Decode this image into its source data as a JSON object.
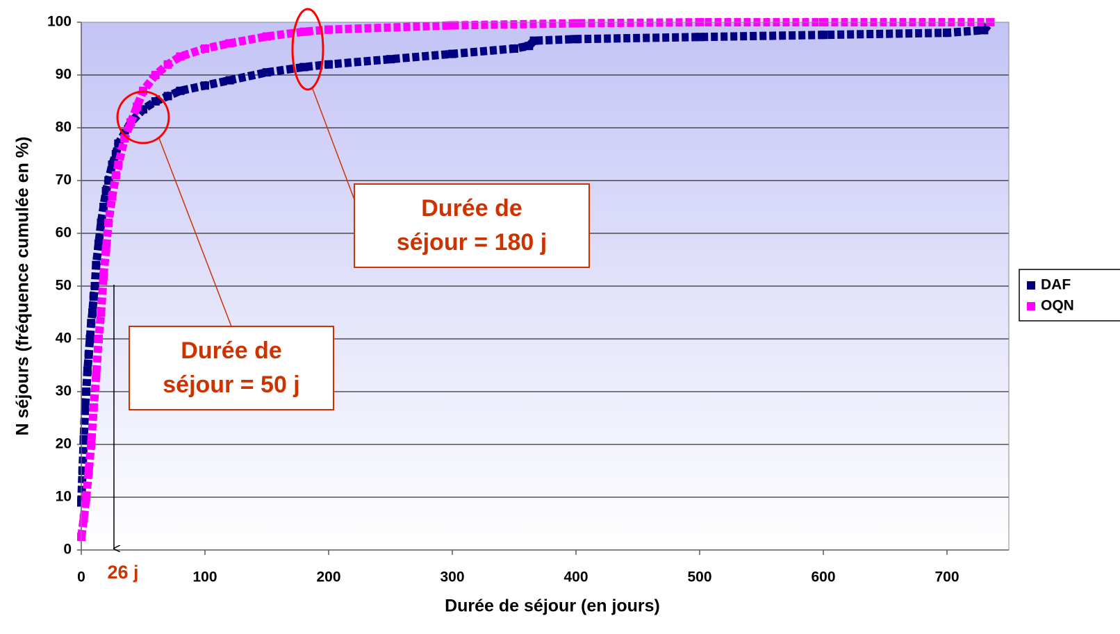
{
  "chart_data": {
    "type": "scatter",
    "xlabel": "Durée de séjour (en jours)",
    "ylabel": "N séjours (fréquence cumulée en %)",
    "xlim": [
      0,
      750
    ],
    "xticks": [
      0,
      100,
      200,
      300,
      400,
      500,
      600,
      700
    ],
    "ylim": [
      0,
      100
    ],
    "yticks": [
      0,
      10,
      20,
      30,
      40,
      50,
      60,
      70,
      80,
      90,
      100
    ],
    "grid": true,
    "legend": "right",
    "series": [
      {
        "name": "DAF",
        "color": "#000080",
        "x": [
          0,
          1,
          2,
          3,
          4,
          5,
          6,
          7,
          8,
          9,
          10,
          11,
          12,
          14,
          16,
          18,
          20,
          22,
          25,
          28,
          30,
          35,
          40,
          50,
          60,
          70,
          80,
          100,
          120,
          150,
          180,
          200,
          250,
          300,
          350,
          362,
          366,
          400,
          500,
          600,
          700,
          730,
          735
        ],
        "values": [
          9,
          15,
          21,
          27,
          30,
          34,
          37,
          40,
          43,
          45,
          48,
          50,
          54,
          58,
          62,
          65,
          68,
          70,
          73,
          75,
          77,
          79,
          81,
          83.5,
          85,
          86,
          87,
          88,
          89,
          90.5,
          91.5,
          92,
          93,
          94,
          95,
          95.5,
          96.5,
          96.8,
          97.2,
          97.6,
          98,
          98.5,
          100
        ]
      },
      {
        "name": "OQN",
        "color": "#ff00ff",
        "x": [
          0,
          2,
          4,
          6,
          8,
          10,
          12,
          14,
          16,
          18,
          20,
          22,
          25,
          28,
          30,
          35,
          40,
          45,
          50,
          60,
          70,
          80,
          100,
          120,
          150,
          180,
          200,
          300,
          400,
          500,
          600,
          735
        ],
        "values": [
          2.5,
          6,
          10,
          15,
          20,
          27,
          33,
          40,
          45,
          52,
          57,
          62,
          67,
          71,
          73,
          78,
          81,
          84,
          87,
          90,
          92,
          93.5,
          95,
          96,
          97.3,
          98.2,
          98.6,
          99.4,
          99.8,
          100,
          100,
          100
        ]
      }
    ],
    "annotations": [
      {
        "lines": [
          "Durée de",
          "séjour = 50 j"
        ]
      },
      {
        "lines": [
          "Durée de",
          "séjour = 180 j"
        ]
      },
      {
        "text": "26 j"
      }
    ]
  }
}
